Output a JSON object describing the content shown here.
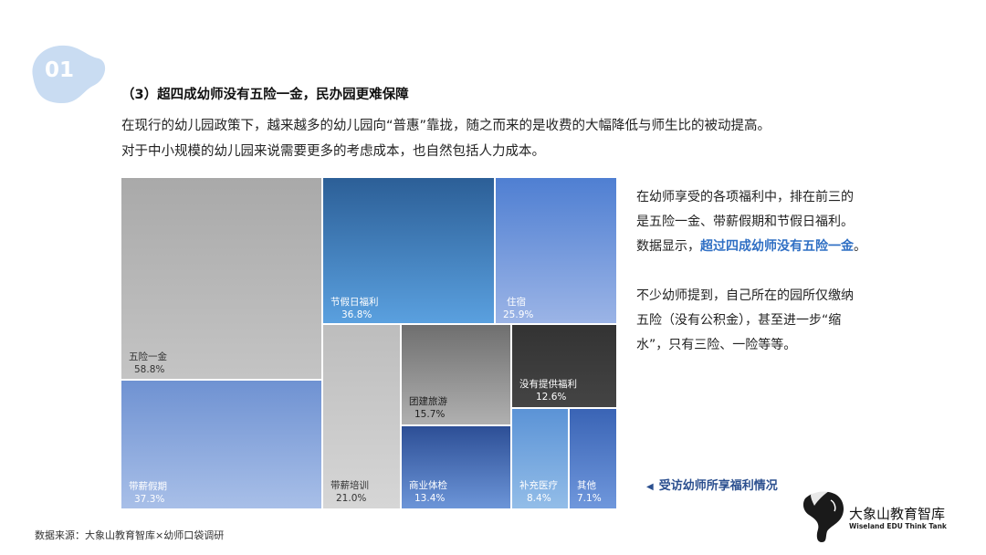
{
  "badge": {
    "number": "01",
    "color": "#c9dcf2"
  },
  "heading": "（3）超四成幼师没有五险一金，民办园更难保障",
  "intro": {
    "line1": "在现行的幼儿园政策下，越来越多的幼儿园向“普惠”靠拢，随之而来的是收费的大幅降低与师生比的被动提高。",
    "line2": "对于中小规模的幼儿园来说需要更多的考虑成本，也自然包括人力成本。"
  },
  "side": {
    "p1_a": "在幼师享受的各项福利中，排在前三的",
    "p1_b": "是五险一金、带薪假期和节假日福利。",
    "p1_c": "数据显示，",
    "p1_highlight": "超过四成幼师没有五险一金",
    "p1_end": "。",
    "p2_a": "不少幼师提到，自己所在的园所仅缴纳",
    "p2_b": "五险（没有公积金），甚至进一步“缩",
    "p2_c": "水”，只有三险、一险等等。",
    "highlight_color": "#2f6fc4"
  },
  "caption": {
    "icon": "left-triangle-icon",
    "text": "受访幼师所享福利情况"
  },
  "source": "数据来源：大象山教育智库×幼师口袋调研",
  "logo": {
    "icon": "elephant-icon",
    "name_cn": "大象山教育智库",
    "name_en": "Wiseland EDU Think Tank"
  },
  "chart_data": {
    "type": "treemap",
    "title": "",
    "unit": "%",
    "items": [
      {
        "label": "五险一金",
        "value": 58.8,
        "display": "58.8%",
        "color": "#b5b5b5"
      },
      {
        "label": "带薪假期",
        "value": 37.3,
        "display": "37.3%",
        "color": "#7d9fd8"
      },
      {
        "label": "节假日福利",
        "value": 36.8,
        "display": "36.8%",
        "color": "#4a8dd0"
      },
      {
        "label": "住宿",
        "value": 25.9,
        "display": "25.9%",
        "color": "#5f88d6"
      },
      {
        "label": "带薪培训",
        "value": 21.0,
        "display": "21.0%",
        "color": "#c6c6c6"
      },
      {
        "label": "团建旅游",
        "value": 15.7,
        "display": "15.7%",
        "color": "#8f8f8f"
      },
      {
        "label": "商业体检",
        "value": 13.4,
        "display": "13.4%",
        "color": "#3f66b0"
      },
      {
        "label": "没有提供福利",
        "value": 12.6,
        "display": "12.6%",
        "color": "#3d3d3d"
      },
      {
        "label": "补充医疗",
        "value": 8.4,
        "display": "8.4%",
        "color": "#6aa0dc"
      },
      {
        "label": "其他",
        "value": 7.1,
        "display": "7.1%",
        "color": "#4a74c2"
      }
    ]
  }
}
